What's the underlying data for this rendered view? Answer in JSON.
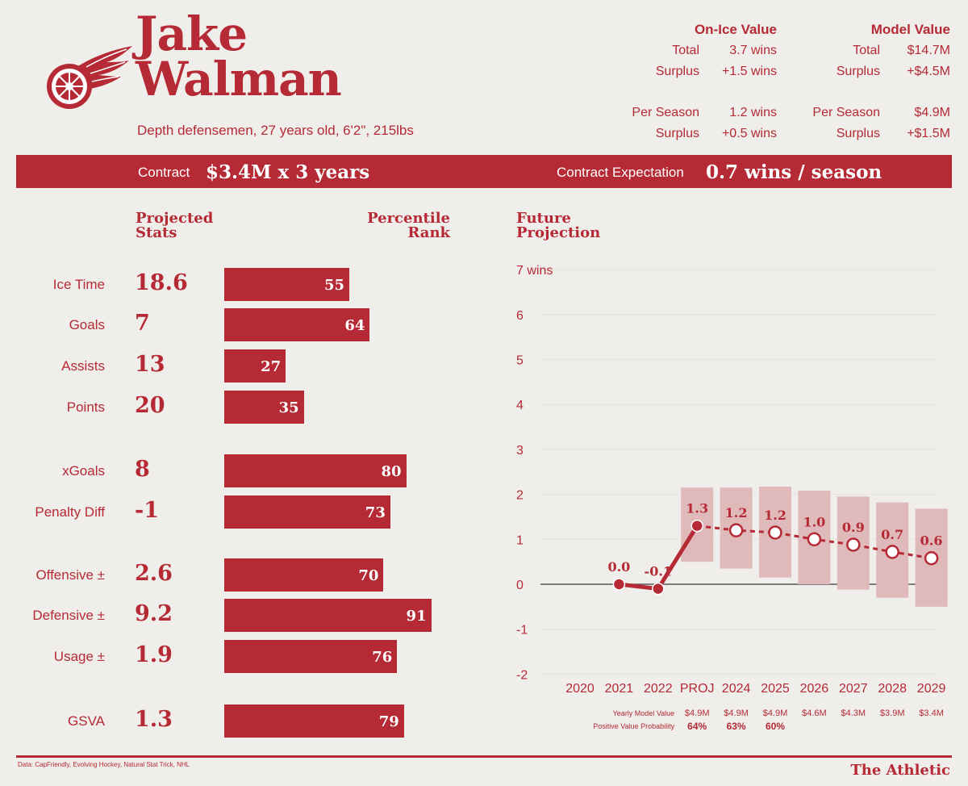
{
  "player": {
    "first": "Jake",
    "last": "Walman",
    "description": "Depth defensemen, 27 years old, 6'2\", 215lbs",
    "team_logo": "Detroit Red Wings winged wheel"
  },
  "on_ice": {
    "title": "On-Ice Value",
    "total_label": "Total",
    "total": "3.7 wins",
    "surplus_label": "Surplus",
    "surplus": "+1.5 wins",
    "per_season_label": "Per Season",
    "per_season": "1.2 wins",
    "ps_surplus_label": "Surplus",
    "ps_surplus": "+0.5 wins"
  },
  "model": {
    "title": "Model Value",
    "total_label": "Total",
    "total": "$14.7M",
    "surplus_label": "Surplus",
    "surplus": "+$4.5M",
    "per_season_label": "Per Season",
    "per_season": "$4.9M",
    "ps_surplus_label": "Surplus",
    "ps_surplus": "+$1.5M"
  },
  "contract": {
    "label": "Contract",
    "value": "$3.4M x 3 years",
    "exp_label": "Contract Expectation",
    "exp_value": "0.7 wins / season"
  },
  "headers": {
    "projected": "Projected Stats",
    "percentile": "Percentile Rank",
    "future": "Future Projection"
  },
  "stats": [
    {
      "label": "Ice Time",
      "value": "18.6",
      "pct": 55
    },
    {
      "label": "Goals",
      "value": "7",
      "pct": 64
    },
    {
      "label": "Assists",
      "value": "13",
      "pct": 27
    },
    {
      "label": "Points",
      "value": "20",
      "pct": 35
    },
    {
      "label": "xGoals",
      "value": "8",
      "pct": 80
    },
    {
      "label": "Penalty Diff",
      "value": "-1",
      "pct": 73
    },
    {
      "label": "Offensive ±",
      "value": "2.6",
      "pct": 70
    },
    {
      "label": "Defensive ±",
      "value": "9.2",
      "pct": 91
    },
    {
      "label": "Usage ±",
      "value": "1.9",
      "pct": 76
    },
    {
      "label": "GSVA",
      "value": "1.3",
      "pct": 79
    }
  ],
  "chart_data": {
    "type": "line",
    "title": "Future Projection",
    "ylabel": "wins",
    "ylim": [
      -2,
      7
    ],
    "y_ticks": [
      "7 wins",
      "6",
      "5",
      "4",
      "3",
      "2",
      "1",
      "0",
      "-1",
      "-2"
    ],
    "categories": [
      "2020",
      "2021",
      "2022",
      "PROJ",
      "2024",
      "2025",
      "2026",
      "2027",
      "2028",
      "2029"
    ],
    "actual": {
      "name": "Actual",
      "values": [
        null,
        0.0,
        -0.1,
        1.3,
        null,
        null,
        null,
        null,
        null,
        null
      ],
      "labels": [
        "",
        "0.0",
        "-0.1",
        "",
        "",
        "",
        "",
        "",
        "",
        ""
      ]
    },
    "projection": {
      "name": "Projection",
      "values": [
        null,
        null,
        null,
        1.3,
        1.2,
        1.15,
        1.0,
        0.88,
        0.72,
        0.58
      ],
      "labels": [
        "",
        "",
        "",
        "1.3",
        "1.2",
        "1.2",
        "1.0",
        "0.9",
        "0.7",
        "0.6"
      ]
    },
    "ranges": [
      null,
      null,
      null,
      [
        0.5,
        2.15
      ],
      [
        0.35,
        2.15
      ],
      [
        0.15,
        2.17
      ],
      [
        0.0,
        2.08
      ],
      [
        -0.12,
        1.95
      ],
      [
        -0.3,
        1.82
      ],
      [
        -0.5,
        1.68
      ]
    ],
    "yearly_model_label": "Yearly Model Value",
    "yearly_model": [
      "",
      "",
      "",
      "$4.9M",
      "$4.9M",
      "$4.9M",
      "$4.6M",
      "$4.3M",
      "$3.9M",
      "$3.4M"
    ],
    "prob_label": "Positive Value Probability",
    "prob": [
      "",
      "",
      "",
      "64%",
      "63%",
      "60%",
      "",
      "",
      "",
      ""
    ]
  },
  "footer": {
    "source": "Data: CapFriendly, Evolving Hockey, Natural Stat Trick, NHL",
    "brand": "The Athletic"
  },
  "colors": {
    "accent": "#b52a35",
    "range": "#e0b9ba",
    "bg": "#efeeea"
  }
}
